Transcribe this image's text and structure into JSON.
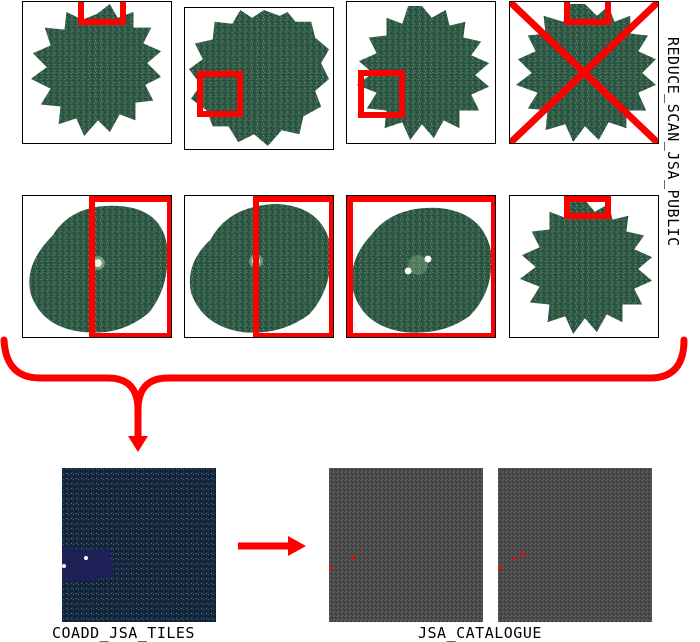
{
  "labels": {
    "stage1": "REDUCE_SCAN_JSA_PUBLIC",
    "stage2": "COADD_JSA_TILES",
    "stage3": "JSA_CATALOGUE"
  },
  "colors": {
    "marker": "#ff0000",
    "map_green": "#2f5a48",
    "tile_bg": "#11213a",
    "catalogue_bg": "#4a4a4a"
  },
  "panels": {
    "row1": [
      {
        "shape": "star",
        "marked": true,
        "rejected": false
      },
      {
        "shape": "star",
        "marked": true,
        "rejected": false
      },
      {
        "shape": "star",
        "marked": true,
        "rejected": false
      },
      {
        "shape": "star",
        "marked": true,
        "rejected": true
      }
    ],
    "row2": [
      {
        "shape": "rounded",
        "marked": true,
        "rejected": false,
        "sources": 1
      },
      {
        "shape": "rounded",
        "marked": true,
        "rejected": false,
        "sources": 1
      },
      {
        "shape": "rounded",
        "marked": true,
        "rejected": false,
        "sources": 2
      },
      {
        "shape": "star",
        "marked": true,
        "rejected": false,
        "sources": 0
      }
    ]
  }
}
